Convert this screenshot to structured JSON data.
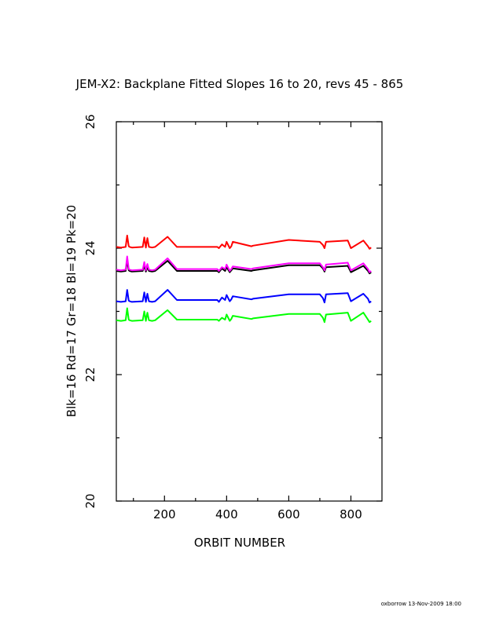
{
  "page": {
    "footer": "oxborrow 13-Nov-2009 18:00"
  },
  "chart_data": {
    "type": "line",
    "title": "JEM-X2: Backplane Fitted Slopes 16 to 20, revs 45 - 865",
    "xlabel": "ORBIT NUMBER",
    "ylabel": "Blk=16 Rd=17 Gr=18 Bl=19 Pk=20",
    "xlim": [
      45,
      900
    ],
    "ylim": [
      20,
      26
    ],
    "x_ticks": [
      "200",
      "400",
      "600",
      "800"
    ],
    "x_tick_values": [
      200,
      400,
      600,
      800
    ],
    "y_ticks": [
      "20",
      "22",
      "24",
      "26"
    ],
    "y_tick_values": [
      20,
      22,
      24,
      26
    ],
    "grid": false,
    "series": [
      {
        "color": "#000000",
        "x": [
          45,
          60,
          75,
          80,
          85,
          88,
          95,
          130,
          135,
          140,
          145,
          150,
          160,
          170,
          210,
          240,
          370,
          375,
          385,
          395,
          400,
          410,
          415,
          420,
          480,
          485,
          600,
          700,
          710,
          715,
          720,
          790,
          800,
          840,
          855,
          860,
          865
        ],
        "y": [
          23.64,
          23.63,
          23.64,
          23.8,
          23.65,
          23.64,
          23.63,
          23.64,
          23.72,
          23.63,
          23.7,
          23.64,
          23.63,
          23.64,
          23.8,
          23.64,
          23.64,
          23.62,
          23.68,
          23.64,
          23.7,
          23.62,
          23.65,
          23.68,
          23.64,
          23.65,
          23.73,
          23.73,
          23.68,
          23.63,
          23.7,
          23.72,
          23.62,
          23.72,
          23.64,
          23.6,
          23.62
        ]
      },
      {
        "color": "#ff0000",
        "x": [
          45,
          60,
          75,
          80,
          85,
          88,
          95,
          130,
          135,
          140,
          145,
          150,
          160,
          170,
          210,
          240,
          370,
          375,
          385,
          395,
          400,
          410,
          415,
          420,
          480,
          485,
          600,
          700,
          710,
          715,
          720,
          790,
          800,
          840,
          855,
          860,
          865
        ],
        "y": [
          24.02,
          24.01,
          24.02,
          24.2,
          24.03,
          24.02,
          24.01,
          24.02,
          24.17,
          24.01,
          24.16,
          24.02,
          24.01,
          24.02,
          24.18,
          24.02,
          24.02,
          24.0,
          24.06,
          24.02,
          24.1,
          24.0,
          24.03,
          24.1,
          24.03,
          24.04,
          24.13,
          24.1,
          24.05,
          24.0,
          24.1,
          24.12,
          24.0,
          24.12,
          24.03,
          23.99,
          24.01
        ]
      },
      {
        "color": "#00ff00",
        "x": [
          45,
          60,
          75,
          80,
          85,
          88,
          95,
          130,
          135,
          140,
          145,
          150,
          160,
          170,
          210,
          240,
          370,
          375,
          385,
          395,
          400,
          410,
          415,
          420,
          480,
          485,
          600,
          700,
          710,
          715,
          720,
          790,
          800,
          840,
          855,
          860,
          865
        ],
        "y": [
          22.86,
          22.85,
          22.86,
          23.05,
          22.87,
          22.86,
          22.85,
          22.86,
          23.0,
          22.85,
          22.98,
          22.86,
          22.85,
          22.86,
          23.02,
          22.87,
          22.87,
          22.85,
          22.9,
          22.87,
          22.95,
          22.85,
          22.88,
          22.93,
          22.88,
          22.89,
          22.96,
          22.96,
          22.9,
          22.83,
          22.95,
          22.98,
          22.85,
          22.98,
          22.87,
          22.83,
          22.85
        ]
      },
      {
        "color": "#0000ff",
        "x": [
          45,
          60,
          75,
          80,
          85,
          88,
          95,
          130,
          135,
          140,
          145,
          150,
          160,
          170,
          210,
          240,
          370,
          375,
          385,
          395,
          400,
          410,
          415,
          420,
          480,
          485,
          600,
          700,
          710,
          715,
          720,
          790,
          800,
          840,
          855,
          860,
          865
        ],
        "y": [
          23.16,
          23.15,
          23.16,
          23.34,
          23.17,
          23.16,
          23.15,
          23.16,
          23.3,
          23.15,
          23.28,
          23.16,
          23.15,
          23.16,
          23.34,
          23.18,
          23.18,
          23.15,
          23.22,
          23.18,
          23.26,
          23.16,
          23.19,
          23.24,
          23.19,
          23.2,
          23.27,
          23.27,
          23.21,
          23.14,
          23.27,
          23.29,
          23.16,
          23.28,
          23.2,
          23.14,
          23.16
        ]
      },
      {
        "color": "#ff00ff",
        "x": [
          45,
          60,
          75,
          80,
          85,
          88,
          95,
          130,
          135,
          140,
          145,
          150,
          160,
          170,
          210,
          240,
          370,
          375,
          385,
          395,
          400,
          410,
          415,
          420,
          480,
          485,
          600,
          700,
          710,
          715,
          720,
          790,
          800,
          840,
          855,
          860,
          865
        ],
        "y": [
          23.66,
          23.65,
          23.66,
          23.87,
          23.67,
          23.66,
          23.65,
          23.66,
          23.78,
          23.65,
          23.75,
          23.66,
          23.65,
          23.66,
          23.84,
          23.67,
          23.67,
          23.64,
          23.7,
          23.67,
          23.74,
          23.64,
          23.67,
          23.71,
          23.67,
          23.68,
          23.76,
          23.76,
          23.7,
          23.65,
          23.74,
          23.77,
          23.65,
          23.76,
          23.67,
          23.62,
          23.64
        ]
      }
    ]
  }
}
